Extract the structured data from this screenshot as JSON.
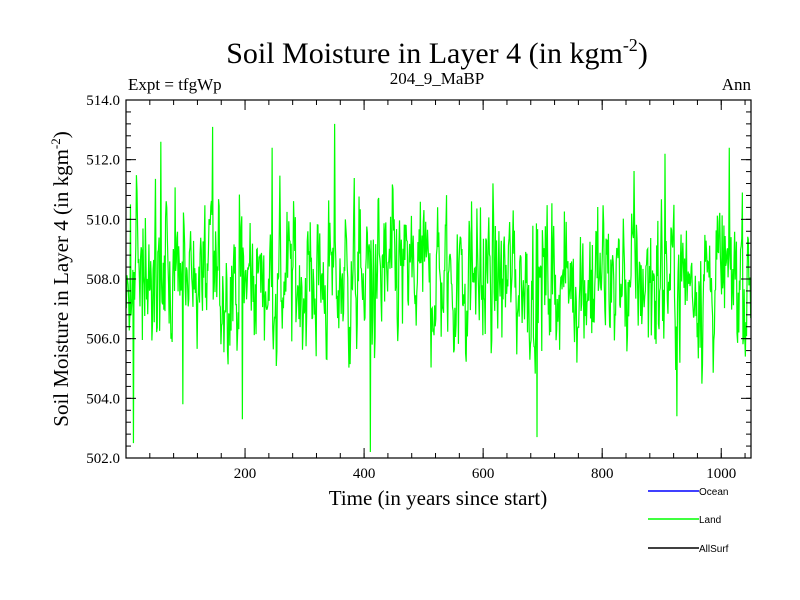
{
  "chart_data": {
    "type": "line",
    "title_main": "Soil Moisture in Layer 4 (in kgm",
    "title_sup": "-2",
    "title_close": ")",
    "subtitle_left": "Expt = tfgWp",
    "subtitle_center": "204_9_MaBP",
    "subtitle_right": "Ann",
    "xlabel": "Time (in years since start)",
    "ylabel_main": "Soil Moisture in Layer 4 (in kgm",
    "ylabel_sup": "-2",
    "ylabel_close": ")",
    "xlim": [
      0,
      1050
    ],
    "ylim": [
      502.0,
      514.0
    ],
    "xticks": [
      200,
      400,
      600,
      800,
      1000
    ],
    "xtick_labels": [
      "200",
      "400",
      "600",
      "800",
      "1000"
    ],
    "yticks": [
      502,
      504,
      506,
      508,
      510,
      512,
      514
    ],
    "ytick_labels": [
      "502.0",
      "504.0",
      "506.0",
      "508.0",
      "510.0",
      "512.0",
      "514.0"
    ],
    "legend": [
      {
        "name": "Ocean",
        "color": "#0000ff"
      },
      {
        "name": "Land",
        "color": "#00ff00"
      },
      {
        "name": "AllSurf",
        "color": "#000000"
      }
    ],
    "series": [
      {
        "name": "Land",
        "color": "#00ff00",
        "mean": 508.0,
        "n_points": 1050,
        "seed": 20491,
        "peaks": [
          [
            7,
            510.5
          ],
          [
            12,
            502.5
          ],
          [
            58,
            512.6
          ],
          [
            95,
            503.8
          ],
          [
            145,
            513.1
          ],
          [
            195,
            503.3
          ],
          [
            245,
            512.4
          ],
          [
            350,
            513.2
          ],
          [
            410,
            502.2
          ],
          [
            580,
            510.6
          ],
          [
            690,
            502.7
          ],
          [
            905,
            512.2
          ],
          [
            925,
            503.4
          ],
          [
            1035,
            510.9
          ],
          [
            1040,
            505.4
          ]
        ]
      }
    ]
  }
}
